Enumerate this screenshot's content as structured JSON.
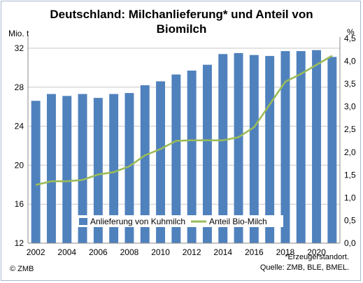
{
  "chart_data": {
    "type": "bar",
    "title": "Deutschland: Milchanlieferung* und Anteil von Biomilch",
    "title_line1": "Deutschland: Milchanlieferung* und Anteil von",
    "title_line2": "Biomilch",
    "y_unit_left": "Mio. t",
    "y_unit_right": "%",
    "years": [
      2002,
      2003,
      2004,
      2005,
      2006,
      2007,
      2008,
      2009,
      2010,
      2011,
      2012,
      2013,
      2014,
      2015,
      2016,
      2017,
      2018,
      2019,
      2020,
      2021
    ],
    "x_tick_labels": [
      "2002",
      "2004",
      "2006",
      "2008",
      "2010",
      "2012",
      "2014",
      "2016",
      "2018",
      "2020"
    ],
    "y_left_ticks": [
      "12",
      "16",
      "20",
      "24",
      "28",
      "32"
    ],
    "y_left_range": [
      12,
      33
    ],
    "y_right_ticks": [
      "0,0",
      "0,5",
      "1,0",
      "1,5",
      "2,0",
      "2,5",
      "3,0",
      "3,5",
      "4,0",
      "4,5"
    ],
    "y_right_range": [
      0,
      4.5
    ],
    "series": [
      {
        "name": "Anlieferung von Kuhmilch",
        "axis": "left",
        "kind": "bar",
        "color": "#4f81bd",
        "values": [
          26.6,
          27.3,
          27.1,
          27.3,
          26.9,
          27.3,
          27.4,
          28.2,
          28.6,
          29.3,
          29.7,
          30.3,
          31.4,
          31.5,
          31.3,
          31.2,
          31.7,
          31.7,
          31.8,
          31.1
        ]
      },
      {
        "name": "Anteil Bio-Milch",
        "axis": "right",
        "kind": "line",
        "color": "#9bbb59",
        "values": [
          1.28,
          1.36,
          1.36,
          1.39,
          1.51,
          1.56,
          1.69,
          1.93,
          2.07,
          2.25,
          2.26,
          2.26,
          2.26,
          2.33,
          2.55,
          3.05,
          3.55,
          3.72,
          3.92,
          4.12
        ]
      }
    ],
    "grid": "horizontal",
    "legend_position": "bottom-inside"
  },
  "footnote": "*Erzeugerstandort.",
  "source": "Quelle: ZMB, BLE, BMEL.",
  "copyright": "© ZMB"
}
